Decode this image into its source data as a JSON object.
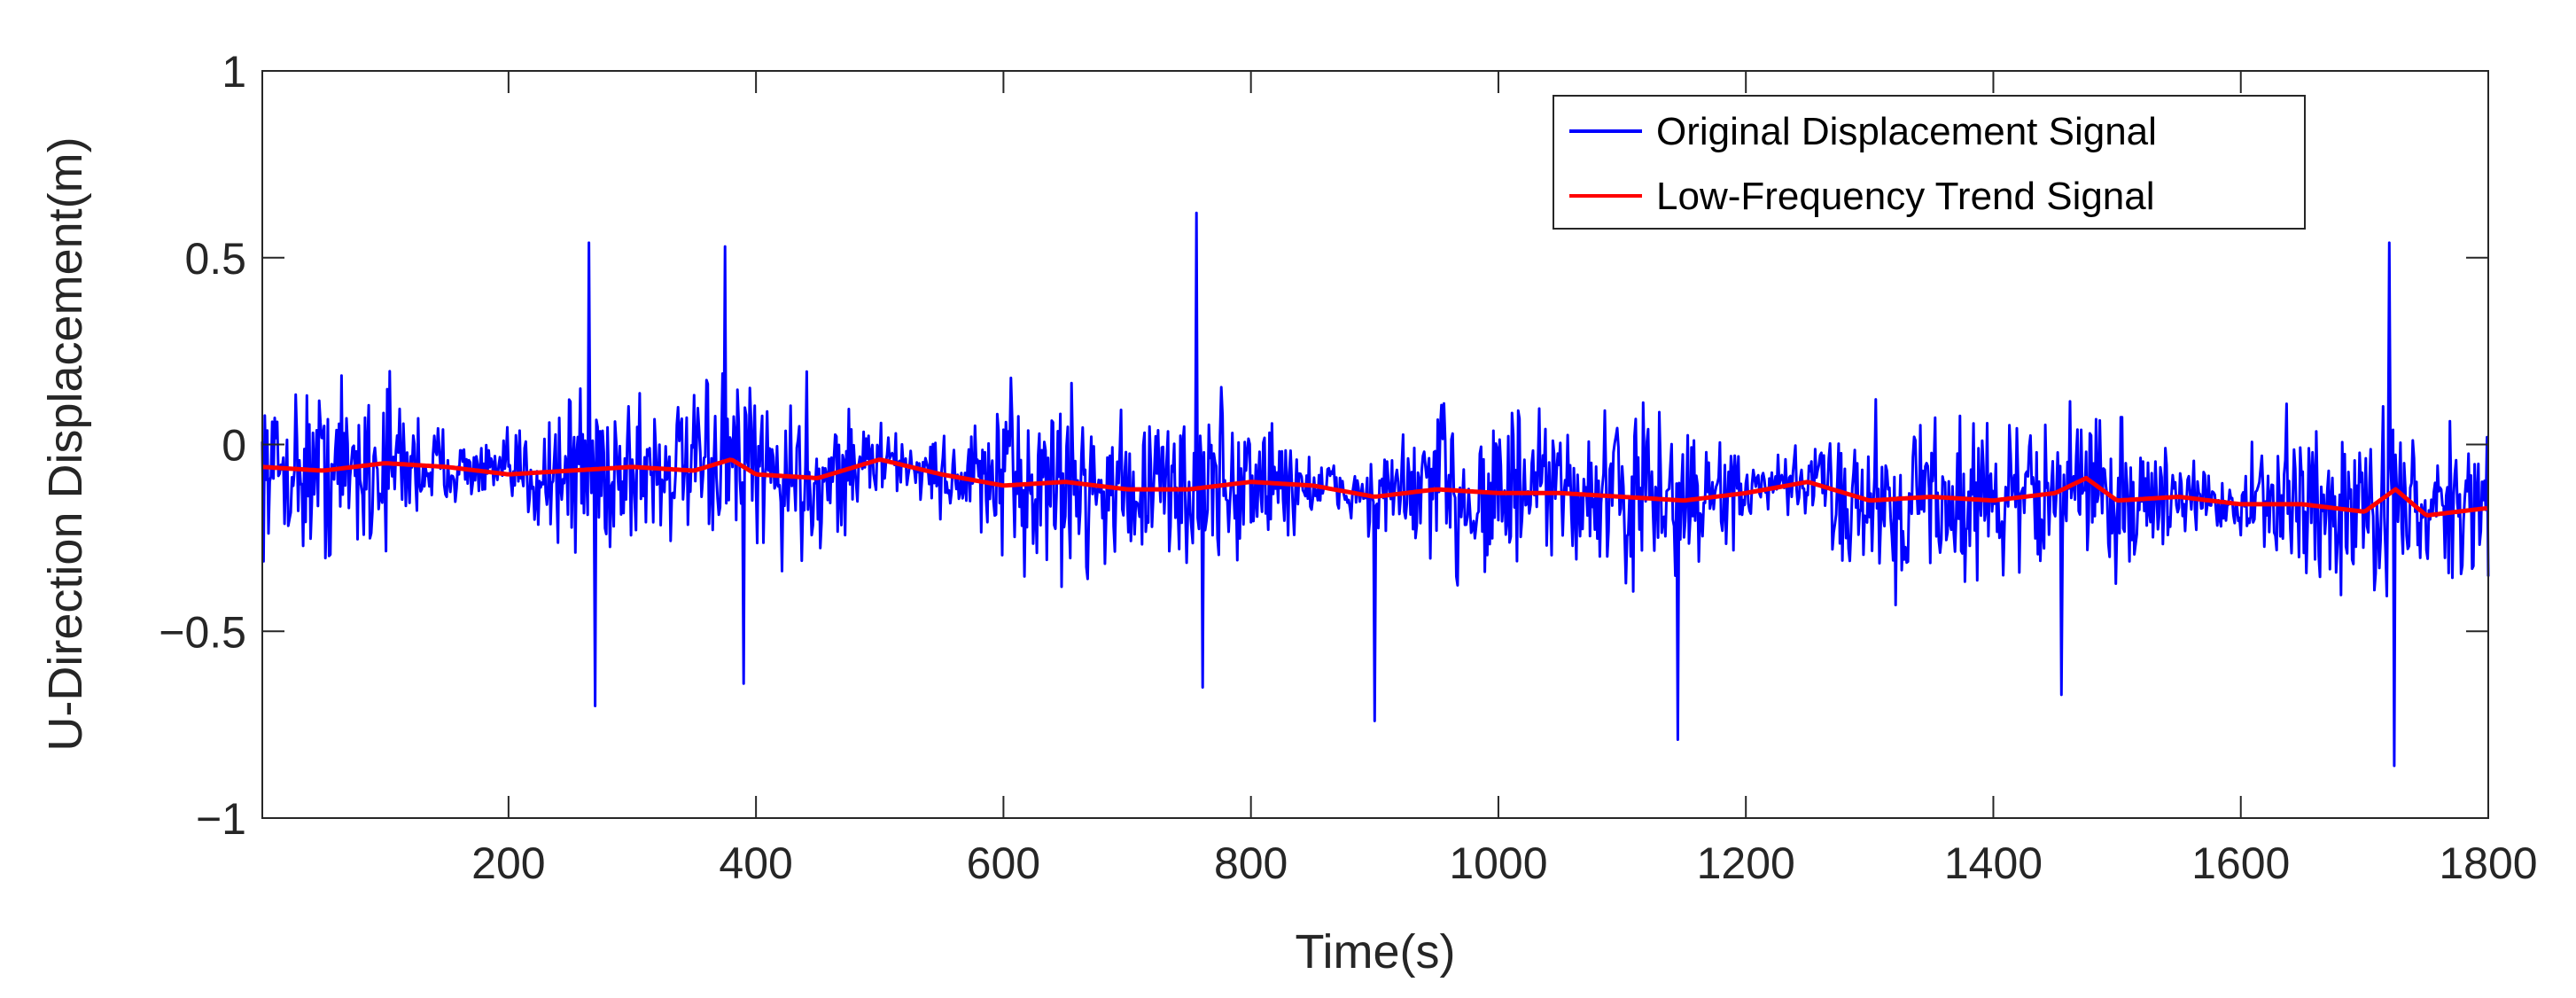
{
  "chart_data": {
    "type": "line",
    "title": "",
    "xlabel": "Time(s)",
    "ylabel": "U-Direction Displacement(m)",
    "xlim": [
      1,
      1800
    ],
    "ylim": [
      -1,
      1
    ],
    "xticks": [
      200,
      400,
      600,
      800,
      1000,
      1200,
      1400,
      1600,
      1800
    ],
    "yticks": [
      1,
      0.5,
      0,
      -0.5,
      -1
    ],
    "xtick_labels": [
      "200",
      "400",
      "600",
      "800",
      "1000",
      "1200",
      "1400",
      "1600",
      "1800"
    ],
    "ytick_labels": [
      "1",
      "0.5",
      "0",
      "−0.5",
      "−1"
    ],
    "grid": false,
    "legend_position": "top-right",
    "series": [
      {
        "name": "Original Displacement Signal",
        "color": "#0000ff",
        "sampling": {
          "x_start": 1,
          "x_end": 1800,
          "dt": 1
        },
        "envelope_y": [
          -0.46,
          0.44
        ],
        "peaks": [
          {
            "x": 265,
            "y": 0.54
          },
          {
            "x": 270,
            "y": -0.7
          },
          {
            "x": 375,
            "y": 0.53
          },
          {
            "x": 390,
            "y": -0.64
          },
          {
            "x": 756,
            "y": 0.62
          },
          {
            "x": 761,
            "y": -0.65
          },
          {
            "x": 900,
            "y": -0.74
          },
          {
            "x": 1145,
            "y": -0.79
          },
          {
            "x": 1455,
            "y": -0.67
          },
          {
            "x": 1720,
            "y": 0.54
          },
          {
            "x": 1724,
            "y": -0.86
          }
        ]
      },
      {
        "name": "Low-Frequency Trend Signal",
        "color": "#ff0000",
        "x": [
          1,
          50,
          100,
          150,
          200,
          250,
          300,
          350,
          380,
          400,
          450,
          500,
          550,
          600,
          650,
          700,
          750,
          800,
          850,
          900,
          950,
          1000,
          1050,
          1100,
          1150,
          1200,
          1250,
          1300,
          1350,
          1400,
          1450,
          1475,
          1500,
          1550,
          1600,
          1650,
          1700,
          1725,
          1750,
          1800
        ],
        "y": [
          -0.06,
          -0.07,
          -0.05,
          -0.06,
          -0.08,
          -0.07,
          -0.06,
          -0.07,
          -0.04,
          -0.08,
          -0.09,
          -0.04,
          -0.08,
          -0.11,
          -0.1,
          -0.12,
          -0.12,
          -0.1,
          -0.11,
          -0.14,
          -0.12,
          -0.13,
          -0.13,
          -0.14,
          -0.15,
          -0.13,
          -0.1,
          -0.15,
          -0.14,
          -0.15,
          -0.13,
          -0.09,
          -0.15,
          -0.14,
          -0.16,
          -0.16,
          -0.18,
          -0.12,
          -0.19,
          -0.17
        ]
      }
    ]
  }
}
